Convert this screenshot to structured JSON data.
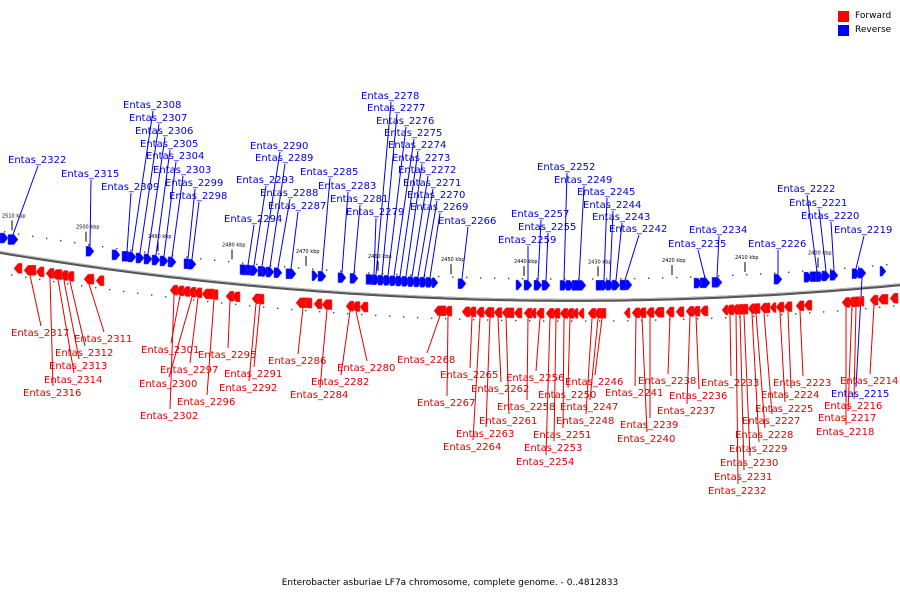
{
  "caption": "Enterobacter asburiae LF7a chromosome, complete genome. - 0..4812833",
  "legend": [
    {
      "label": "Forward",
      "color": "#ff0000"
    },
    {
      "label": "Reverse",
      "color": "#0000ff"
    }
  ],
  "scale_ticks": [
    "2510 kbp",
    "2500 kbp",
    "2490 kbp",
    "2480 kbp",
    "2470 kbp",
    "2460 kbp",
    "2450 kbp",
    "2440 kbp",
    "2430 kbp",
    "2420 kbp",
    "2410 kbp",
    "2400 kbp"
  ],
  "reverse_genes": [
    "Entas_2322",
    "Entas_2315",
    "Entas_2309",
    "Entas_2308",
    "Entas_2307",
    "Entas_2306",
    "Entas_2305",
    "Entas_2304",
    "Entas_2303",
    "Entas_2299",
    "Entas_2298",
    "Entas_2294",
    "Entas_2293",
    "Entas_2290",
    "Entas_2289",
    "Entas_2288",
    "Entas_2287",
    "Entas_2285",
    "Entas_2283",
    "Entas_2281",
    "Entas_2279",
    "Entas_2278",
    "Entas_2277",
    "Entas_2276",
    "Entas_2275",
    "Entas_2274",
    "Entas_2273",
    "Entas_2272",
    "Entas_2271",
    "Entas_2270",
    "Entas_2269",
    "Entas_2266",
    "Entas_2259",
    "Entas_2257",
    "Entas_2255",
    "Entas_2252",
    "Entas_2249",
    "Entas_2245",
    "Entas_2244",
    "Entas_2243",
    "Entas_2242",
    "Entas_2235",
    "Entas_2234",
    "Entas_2226",
    "Entas_2222",
    "Entas_2221",
    "Entas_2220",
    "Entas_2219",
    "Entas_2215"
  ],
  "forward_genes": [
    "Entas_2317",
    "Entas_2312",
    "Entas_2313",
    "Entas_2314",
    "Entas_2316",
    "Entas_2311",
    "Entas_2302",
    "Entas_2301",
    "Entas_2300",
    "Entas_2297",
    "Entas_2296",
    "Entas_2295",
    "Entas_2292",
    "Entas_2291",
    "Entas_2286",
    "Entas_2284",
    "Entas_2282",
    "Entas_2280",
    "Entas_2268",
    "Entas_2267",
    "Entas_2265",
    "Entas_2264",
    "Entas_2263",
    "Entas_2262",
    "Entas_2261",
    "Entas_2258",
    "Entas_2256",
    "Entas_2254",
    "Entas_2253",
    "Entas_2251",
    "Entas_2250",
    "Entas_2248",
    "Entas_2247",
    "Entas_2246",
    "Entas_2241",
    "Entas_2240",
    "Entas_2239",
    "Entas_2238",
    "Entas_2237",
    "Entas_2236",
    "Entas_2233",
    "Entas_2232",
    "Entas_2231",
    "Entas_2230",
    "Entas_2229",
    "Entas_2228",
    "Entas_2227",
    "Entas_2225",
    "Entas_2224",
    "Entas_2223",
    "Entas_2218",
    "Entas_2217",
    "Entas_2216",
    "Entas_2214"
  ]
}
